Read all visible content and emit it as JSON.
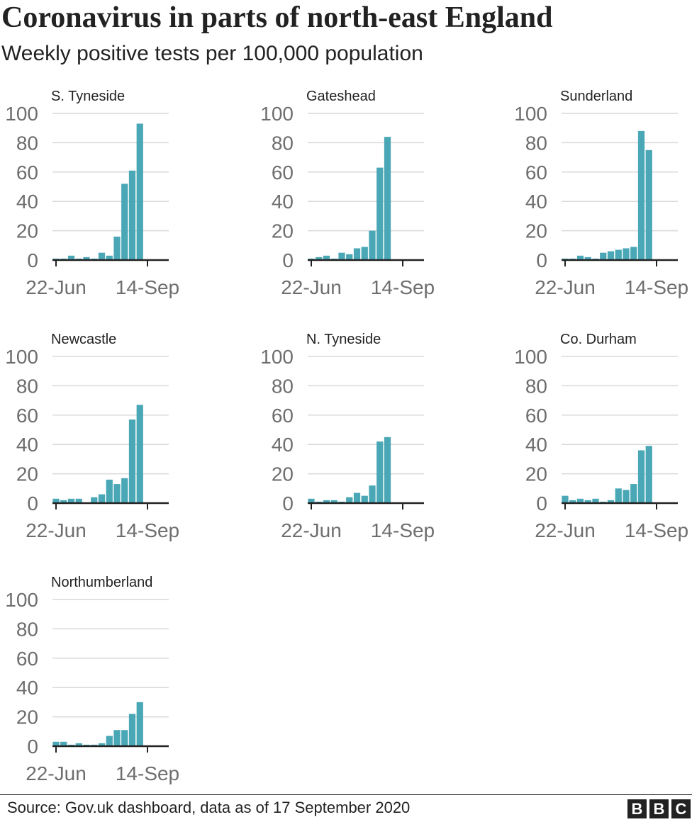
{
  "title": "Coronavirus in parts of north-east England",
  "subtitle": "Weekly positive tests per 100,000 population",
  "source": "Source: Gov.uk dashboard, data as of 17 September 2020",
  "logo": [
    "B",
    "B",
    "C"
  ],
  "colors": {
    "bar": "#4aa7b6",
    "grid": "#d9d9d9",
    "axis": "#222222",
    "tick_text": "#6e6e6e",
    "text": "#222222"
  },
  "chart_data": [
    {
      "type": "bar",
      "title": "S. Tyneside",
      "ylim": [
        0,
        100
      ],
      "yticks": [
        "100",
        "80",
        "60",
        "40",
        "20",
        "0"
      ],
      "xtick_labels": [
        "22-Jun",
        "14-Sep"
      ],
      "x": [
        "22-Jun",
        "29-Jun",
        "06-Jul",
        "13-Jul",
        "20-Jul",
        "27-Jul",
        "03-Aug",
        "10-Aug",
        "17-Aug",
        "24-Aug",
        "31-Aug",
        "07-Sep",
        "14-Sep"
      ],
      "values": [
        1,
        1,
        3,
        1,
        2,
        1,
        5,
        3,
        16,
        52,
        61,
        93,
        0
      ],
      "grid": true
    },
    {
      "type": "bar",
      "title": "Gateshead",
      "ylim": [
        0,
        100
      ],
      "yticks": [
        "100",
        "80",
        "60",
        "40",
        "20",
        "0"
      ],
      "xtick_labels": [
        "22-Jun",
        "14-Sep"
      ],
      "x": [
        "22-Jun",
        "29-Jun",
        "06-Jul",
        "13-Jul",
        "20-Jul",
        "27-Jul",
        "03-Aug",
        "10-Aug",
        "17-Aug",
        "24-Aug",
        "31-Aug",
        "07-Sep",
        "14-Sep"
      ],
      "values": [
        1,
        2,
        3,
        1,
        5,
        4,
        8,
        9,
        20,
        63,
        84,
        0,
        0
      ],
      "grid": true
    },
    {
      "type": "bar",
      "title": "Sunderland",
      "ylim": [
        0,
        100
      ],
      "yticks": [
        "100",
        "80",
        "60",
        "40",
        "20",
        "0"
      ],
      "xtick_labels": [
        "22-Jun",
        "14-Sep"
      ],
      "x": [
        "22-Jun",
        "29-Jun",
        "06-Jul",
        "13-Jul",
        "20-Jul",
        "27-Jul",
        "03-Aug",
        "10-Aug",
        "17-Aug",
        "24-Aug",
        "31-Aug",
        "07-Sep",
        "14-Sep"
      ],
      "values": [
        1,
        1,
        3,
        2,
        1,
        5,
        6,
        7,
        8,
        9,
        88,
        75,
        0
      ],
      "grid": true
    },
    {
      "type": "bar",
      "title": "Newcastle",
      "ylim": [
        0,
        100
      ],
      "yticks": [
        "100",
        "80",
        "60",
        "40",
        "20",
        "0"
      ],
      "xtick_labels": [
        "22-Jun",
        "14-Sep"
      ],
      "x": [
        "22-Jun",
        "29-Jun",
        "06-Jul",
        "13-Jul",
        "20-Jul",
        "27-Jul",
        "03-Aug",
        "10-Aug",
        "17-Aug",
        "24-Aug",
        "31-Aug",
        "07-Sep",
        "14-Sep"
      ],
      "values": [
        3,
        2,
        3,
        3,
        0,
        4,
        6,
        16,
        13,
        17,
        57,
        67,
        0
      ],
      "grid": true
    },
    {
      "type": "bar",
      "title": "N. Tyneside",
      "ylim": [
        0,
        100
      ],
      "yticks": [
        "100",
        "80",
        "60",
        "40",
        "20",
        "0"
      ],
      "xtick_labels": [
        "22-Jun",
        "14-Sep"
      ],
      "x": [
        "22-Jun",
        "29-Jun",
        "06-Jul",
        "13-Jul",
        "20-Jul",
        "27-Jul",
        "03-Aug",
        "10-Aug",
        "17-Aug",
        "24-Aug",
        "31-Aug",
        "07-Sep",
        "14-Sep"
      ],
      "values": [
        3,
        1,
        2,
        2,
        1,
        4,
        7,
        5,
        12,
        42,
        45,
        0,
        0
      ],
      "grid": true
    },
    {
      "type": "bar",
      "title": "Co. Durham",
      "ylim": [
        0,
        100
      ],
      "yticks": [
        "100",
        "80",
        "60",
        "40",
        "20",
        "0"
      ],
      "xtick_labels": [
        "22-Jun",
        "14-Sep"
      ],
      "x": [
        "22-Jun",
        "29-Jun",
        "06-Jul",
        "13-Jul",
        "20-Jul",
        "27-Jul",
        "03-Aug",
        "10-Aug",
        "17-Aug",
        "24-Aug",
        "31-Aug",
        "07-Sep",
        "14-Sep"
      ],
      "values": [
        5,
        2,
        3,
        2,
        3,
        1,
        2,
        10,
        9,
        13,
        36,
        39,
        0
      ],
      "grid": true
    },
    {
      "type": "bar",
      "title": "Northumberland",
      "ylim": [
        0,
        100
      ],
      "yticks": [
        "100",
        "80",
        "60",
        "40",
        "20",
        "0"
      ],
      "xtick_labels": [
        "22-Jun",
        "14-Sep"
      ],
      "x": [
        "22-Jun",
        "29-Jun",
        "06-Jul",
        "13-Jul",
        "20-Jul",
        "27-Jul",
        "03-Aug",
        "10-Aug",
        "17-Aug",
        "24-Aug",
        "31-Aug",
        "07-Sep",
        "14-Sep"
      ],
      "values": [
        3,
        3,
        1,
        2,
        1,
        1,
        2,
        7,
        11,
        11,
        22,
        30,
        0
      ],
      "grid": true
    }
  ]
}
